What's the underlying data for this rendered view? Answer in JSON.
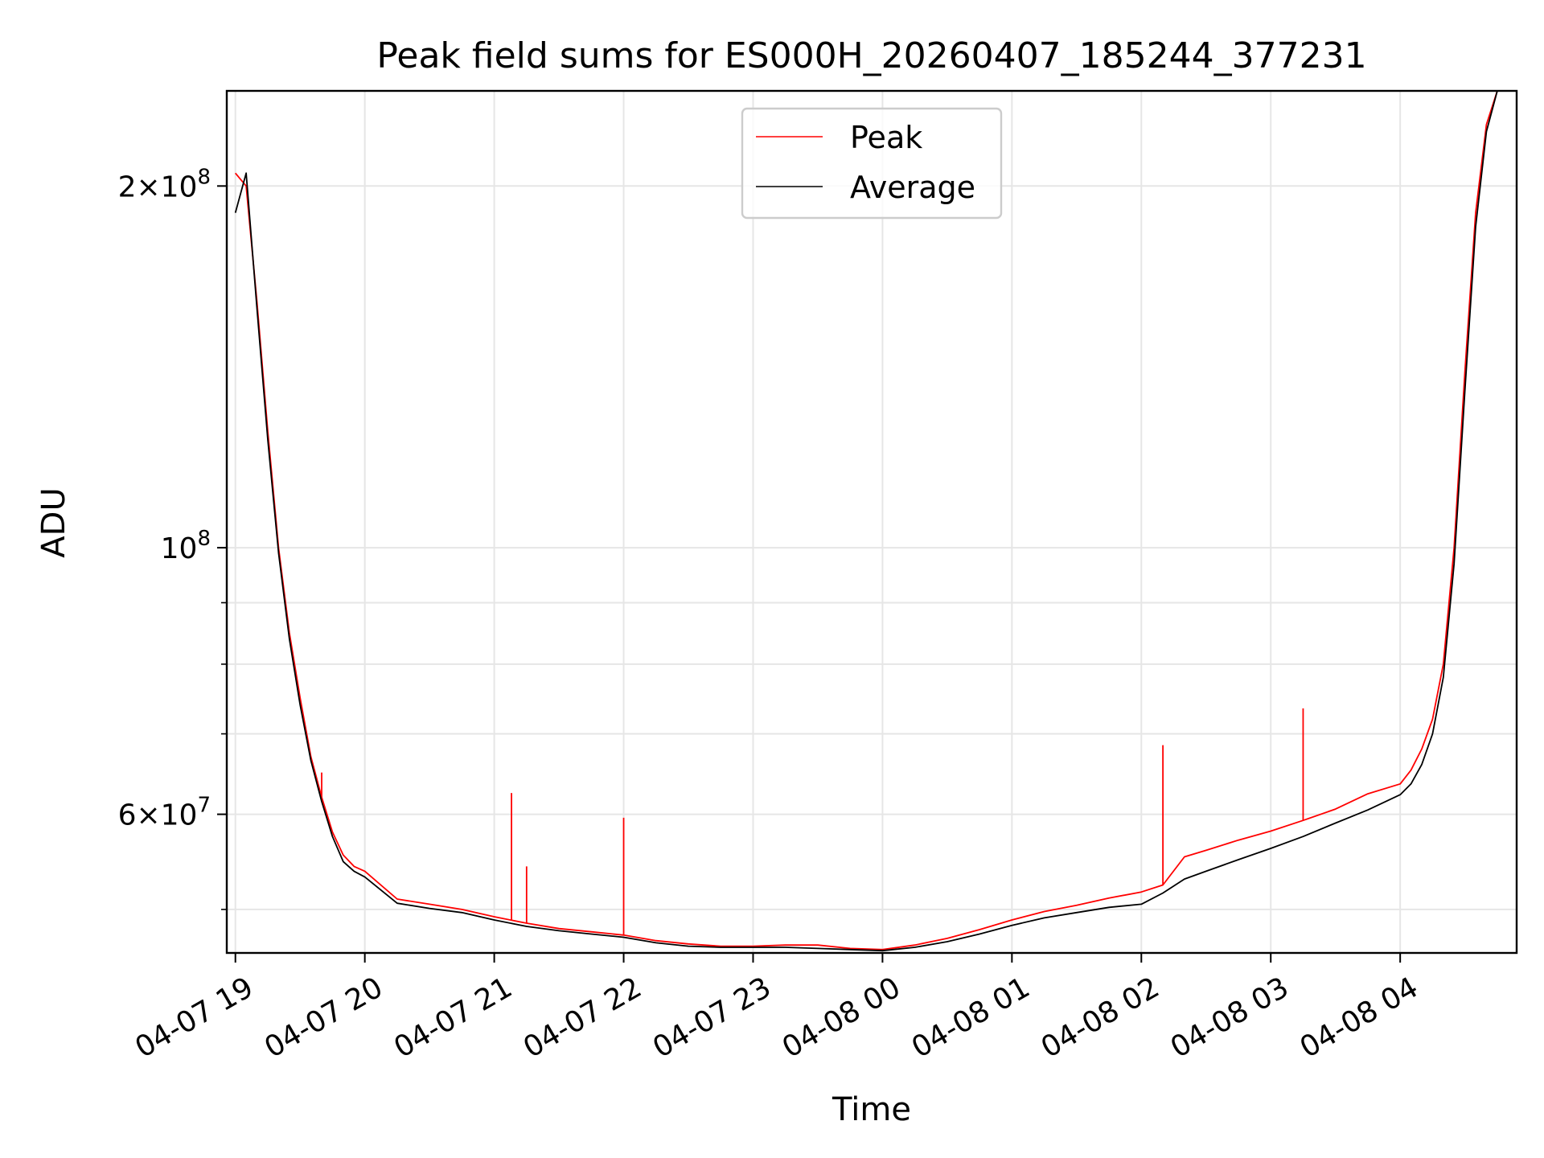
{
  "chart_data": {
    "type": "line",
    "title": "Peak field sums for ES000H_20260407_185244_377231",
    "xlabel": "Time",
    "ylabel": "ADU",
    "y_scale": "log",
    "ylim": [
      46000000,
      240000000
    ],
    "xlim": [
      "2026-04-07 18:56",
      "2026-04-08 04:54"
    ],
    "x_tick_labels": [
      "04-07 19",
      "04-07 20",
      "04-07 21",
      "04-07 22",
      "04-07 23",
      "04-08 00",
      "04-08 01",
      "04-08 02",
      "04-08 03",
      "04-08 04"
    ],
    "x_tick_values": [
      "2026-04-07 19:00",
      "2026-04-07 20:00",
      "2026-04-07 21:00",
      "2026-04-07 22:00",
      "2026-04-07 23:00",
      "2026-04-08 00:00",
      "2026-04-08 01:00",
      "2026-04-08 02:00",
      "2026-04-08 03:00",
      "2026-04-08 04:00"
    ],
    "y_major_ticks": [
      {
        "value": 200000000,
        "mantissa": "2×10",
        "exponent": "8"
      },
      {
        "value": 100000000,
        "mantissa": "10",
        "exponent": "8"
      },
      {
        "value": 60000000,
        "mantissa": "6×10",
        "exponent": "7"
      }
    ],
    "y_minor_ticks": [
      50000000,
      70000000,
      80000000,
      90000000
    ],
    "grid": true,
    "legend": {
      "placement": "top-center"
    },
    "series": [
      {
        "name": "Peak",
        "color": "#ff0000",
        "x": [
          "2026-04-07 19:00",
          "2026-04-07 19:05",
          "2026-04-07 19:10",
          "2026-04-07 19:15",
          "2026-04-07 19:20",
          "2026-04-07 19:25",
          "2026-04-07 19:30",
          "2026-04-07 19:35",
          "2026-04-07 19:40",
          "2026-04-07 19:45",
          "2026-04-07 19:50",
          "2026-04-07 19:55",
          "2026-04-07 20:00",
          "2026-04-07 20:15",
          "2026-04-07 20:30",
          "2026-04-07 20:45",
          "2026-04-07 21:00",
          "2026-04-07 21:15",
          "2026-04-07 21:30",
          "2026-04-07 21:45",
          "2026-04-07 22:00",
          "2026-04-07 22:15",
          "2026-04-07 22:30",
          "2026-04-07 22:45",
          "2026-04-07 23:00",
          "2026-04-07 23:15",
          "2026-04-07 23:30",
          "2026-04-07 23:45",
          "2026-04-08 00:00",
          "2026-04-08 00:15",
          "2026-04-08 00:30",
          "2026-04-08 00:45",
          "2026-04-08 01:00",
          "2026-04-08 01:15",
          "2026-04-08 01:30",
          "2026-04-08 01:45",
          "2026-04-08 02:00",
          "2026-04-08 02:10",
          "2026-04-08 02:20",
          "2026-04-08 02:30",
          "2026-04-08 02:45",
          "2026-04-08 03:00",
          "2026-04-08 03:15",
          "2026-04-08 03:30",
          "2026-04-08 03:45",
          "2026-04-08 04:00",
          "2026-04-08 04:05",
          "2026-04-08 04:10",
          "2026-04-08 04:15",
          "2026-04-08 04:20",
          "2026-04-08 04:25",
          "2026-04-08 04:30",
          "2026-04-08 04:35",
          "2026-04-08 04:40",
          "2026-04-08 04:45"
        ],
        "values": [
          205000000,
          200000000,
          160000000,
          125000000,
          100000000,
          85000000,
          75000000,
          67000000,
          62000000,
          58000000,
          55500000,
          54300000,
          53800000,
          51000000,
          50500000,
          50000000,
          49300000,
          48700000,
          48200000,
          47900000,
          47600000,
          47100000,
          46800000,
          46600000,
          46600000,
          46700000,
          46700000,
          46400000,
          46300000,
          46700000,
          47300000,
          48100000,
          49000000,
          49800000,
          50400000,
          51100000,
          51700000,
          52400000,
          55300000,
          56000000,
          57100000,
          58100000,
          59300000,
          60600000,
          62400000,
          63600000,
          65300000,
          68000000,
          72000000,
          80000000,
          100000000,
          140000000,
          190000000,
          225000000,
          240000000
        ],
        "spikes": [
          {
            "x": "2026-04-07 19:40",
            "value": 65000000
          },
          {
            "x": "2026-04-07 21:08",
            "value": 62500000
          },
          {
            "x": "2026-04-07 21:15",
            "value": 54300000
          },
          {
            "x": "2026-04-07 22:00",
            "value": 59600000
          },
          {
            "x": "2026-04-08 02:10",
            "value": 68500000
          },
          {
            "x": "2026-04-08 03:15",
            "value": 73500000
          }
        ]
      },
      {
        "name": "Average",
        "color": "#000000",
        "x": [
          "2026-04-07 19:00",
          "2026-04-07 19:05",
          "2026-04-07 19:10",
          "2026-04-07 19:15",
          "2026-04-07 19:20",
          "2026-04-07 19:25",
          "2026-04-07 19:30",
          "2026-04-07 19:35",
          "2026-04-07 19:40",
          "2026-04-07 19:45",
          "2026-04-07 19:50",
          "2026-04-07 19:55",
          "2026-04-07 20:00",
          "2026-04-07 20:15",
          "2026-04-07 20:30",
          "2026-04-07 20:45",
          "2026-04-07 21:00",
          "2026-04-07 21:15",
          "2026-04-07 21:30",
          "2026-04-07 21:45",
          "2026-04-07 22:00",
          "2026-04-07 22:15",
          "2026-04-07 22:30",
          "2026-04-07 22:45",
          "2026-04-07 23:00",
          "2026-04-07 23:15",
          "2026-04-07 23:30",
          "2026-04-07 23:45",
          "2026-04-08 00:00",
          "2026-04-08 00:15",
          "2026-04-08 00:30",
          "2026-04-08 00:45",
          "2026-04-08 01:00",
          "2026-04-08 01:15",
          "2026-04-08 01:30",
          "2026-04-08 01:45",
          "2026-04-08 02:00",
          "2026-04-08 02:10",
          "2026-04-08 02:20",
          "2026-04-08 02:30",
          "2026-04-08 02:45",
          "2026-04-08 03:00",
          "2026-04-08 03:15",
          "2026-04-08 03:30",
          "2026-04-08 03:45",
          "2026-04-08 04:00",
          "2026-04-08 04:05",
          "2026-04-08 04:10",
          "2026-04-08 04:15",
          "2026-04-08 04:20",
          "2026-04-08 04:25",
          "2026-04-08 04:30",
          "2026-04-08 04:35",
          "2026-04-08 04:40",
          "2026-04-08 04:45"
        ],
        "values": [
          190000000,
          205000000,
          158000000,
          123000000,
          99000000,
          84000000,
          74000000,
          66500000,
          61500000,
          57500000,
          54800000,
          53800000,
          53200000,
          50600000,
          50100000,
          49700000,
          49000000,
          48400000,
          48000000,
          47700000,
          47400000,
          46900000,
          46600000,
          46500000,
          46500000,
          46500000,
          46400000,
          46300000,
          46200000,
          46500000,
          47000000,
          47700000,
          48500000,
          49200000,
          49700000,
          50200000,
          50500000,
          51600000,
          53000000,
          53800000,
          55000000,
          56200000,
          57500000,
          59000000,
          60500000,
          62300000,
          63600000,
          66000000,
          70000000,
          78000000,
          97000000,
          135000000,
          185000000,
          222000000,
          240000000
        ]
      }
    ]
  }
}
